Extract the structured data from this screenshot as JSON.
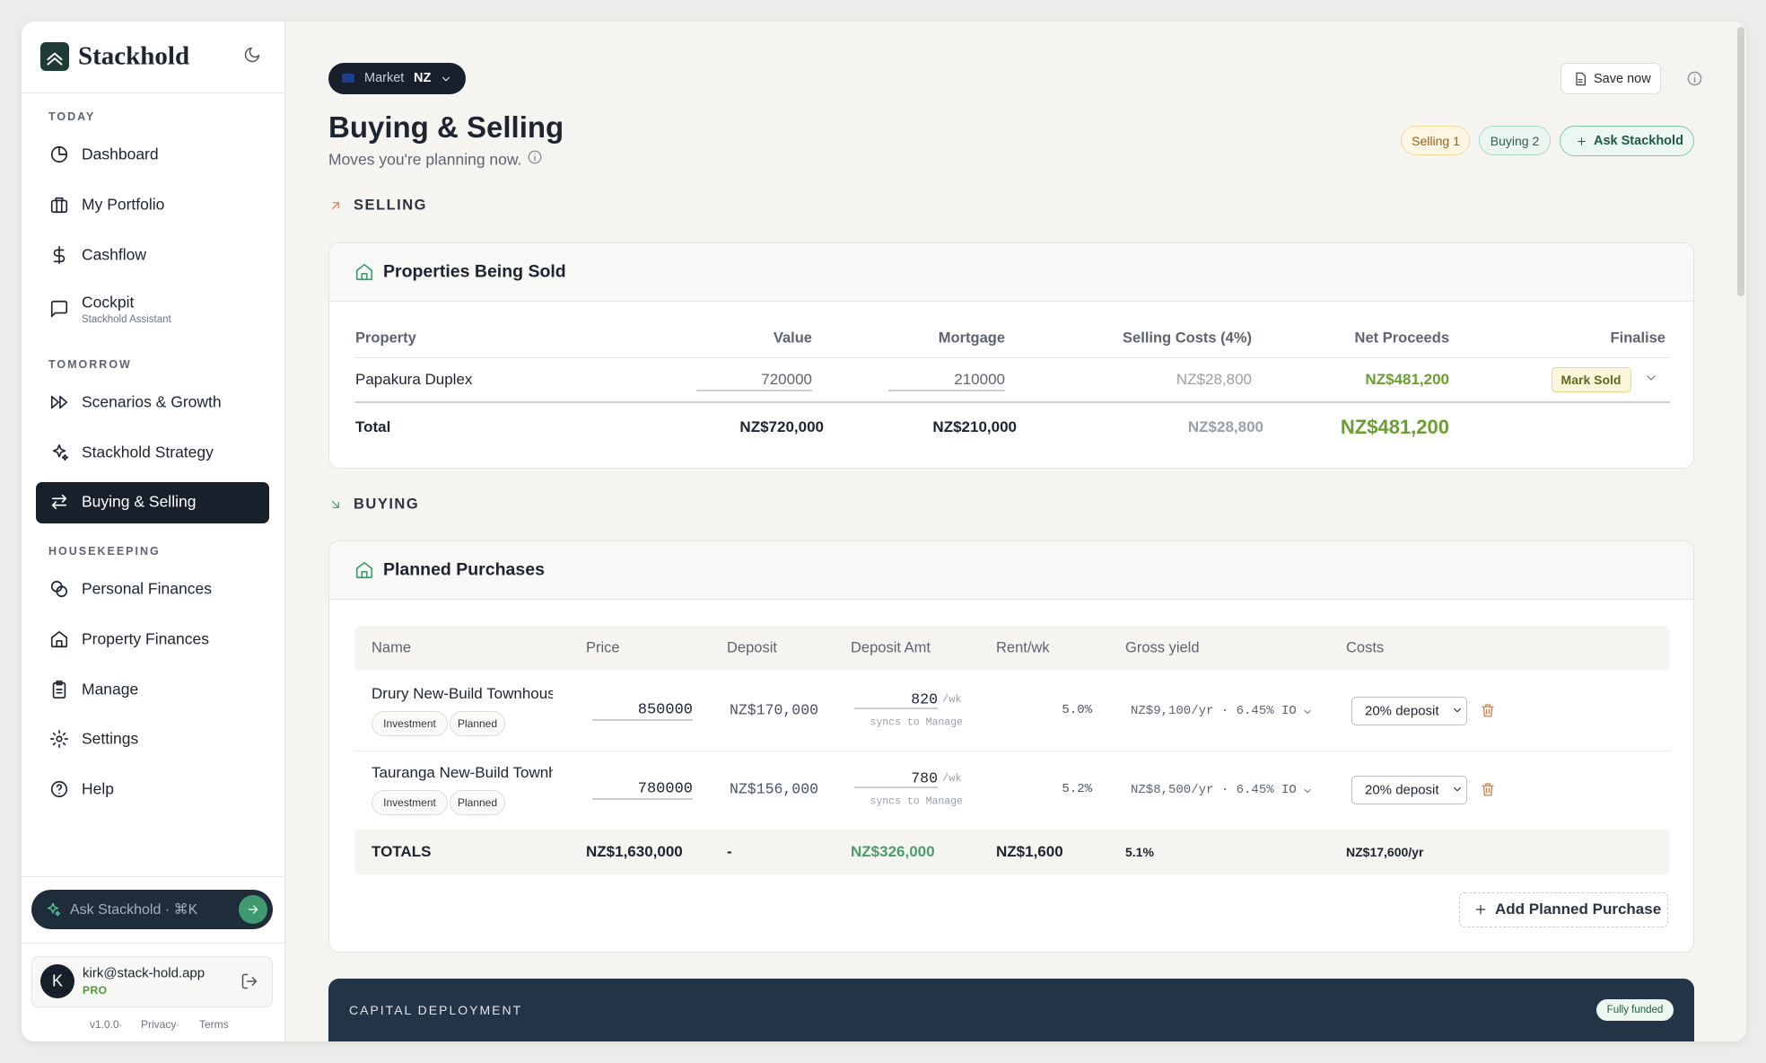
{
  "sidebar": {
    "brand": "Stackhold",
    "sections": [
      {
        "label": "TODAY",
        "items": [
          {
            "label": "Dashboard"
          },
          {
            "label": "My Portfolio"
          },
          {
            "label": "Cashflow"
          },
          {
            "label": "Cockpit",
            "sublabel": "Stackhold Assistant"
          }
        ]
      },
      {
        "label": "TOMORROW",
        "items": [
          {
            "label": "Scenarios & Growth"
          },
          {
            "label": "Stackhold Strategy"
          },
          {
            "label": "Buying & Selling",
            "active": true
          }
        ]
      },
      {
        "label": "HOUSEKEEPING",
        "items": [
          {
            "label": "Personal Finances"
          },
          {
            "label": "Property Finances"
          },
          {
            "label": "Manage"
          },
          {
            "label": "Settings"
          },
          {
            "label": "Help"
          }
        ]
      }
    ],
    "ask": "Ask Stackhold · ⌘K",
    "user": {
      "initial": "K",
      "email": "kirk@stack-hold.app",
      "plan": "PRO"
    },
    "footer": [
      "v1.0.0",
      "·",
      "Privacy",
      "·",
      "Terms"
    ]
  },
  "header": {
    "market_label": "Market",
    "market": "NZ",
    "title": "Buying & Selling",
    "subtitle": "Moves you're planning now.",
    "save": "Save now",
    "pills": [
      "Selling 1",
      "Buying 2"
    ],
    "ask": "Ask Stackhold"
  },
  "selling": {
    "label": "SELLING",
    "card_title": "Properties Being Sold",
    "columns": [
      "Property",
      "Value",
      "Mortgage",
      "Selling Costs (4%)",
      "Net Proceeds",
      "Finalise"
    ],
    "rows": [
      [
        "Papakura Duplex",
        "720000",
        "210000",
        "NZ$28,800",
        "NZ$481,200",
        "Mark Sold"
      ]
    ],
    "total": [
      "Total",
      "NZ$720,000",
      "NZ$210,000",
      "NZ$28,800",
      "NZ$481,200"
    ]
  },
  "buying": {
    "label": "BUYING",
    "card_title": "Planned Purchases",
    "columns": [
      "Name",
      "Price",
      "Deposit",
      "Deposit Amt",
      "Rent/wk",
      "Gross yield",
      "Costs"
    ],
    "rows": [
      {
        "name": "Drury New-Build Townhouse",
        "tags": [
          "Investment",
          "Planned"
        ],
        "price": "850000",
        "deposit": "NZ$170,000",
        "rent": "820",
        "rent_unit": "/wk",
        "sync": "syncs to Manage",
        "yield": "5.0%",
        "costs": "NZ$9,100/yr · 6.45% IO",
        "option": "20% deposit"
      },
      {
        "name": "Tauranga New-Build Townhouse",
        "tags": [
          "Investment",
          "Planned"
        ],
        "price": "780000",
        "deposit": "NZ$156,000",
        "rent": "780",
        "rent_unit": "/wk",
        "sync": "syncs to Manage",
        "yield": "5.2%",
        "costs": "NZ$8,500/yr · 6.45% IO",
        "option": "20% deposit"
      }
    ],
    "totals": [
      "TOTALS",
      "NZ$1,630,000",
      "-",
      "NZ$326,000",
      "NZ$1,600",
      "5.1%",
      "NZ$17,600/yr"
    ],
    "add": "Add Planned Purchase"
  },
  "capital": {
    "label": "CAPITAL DEPLOYMENT",
    "status": "Fully funded"
  }
}
